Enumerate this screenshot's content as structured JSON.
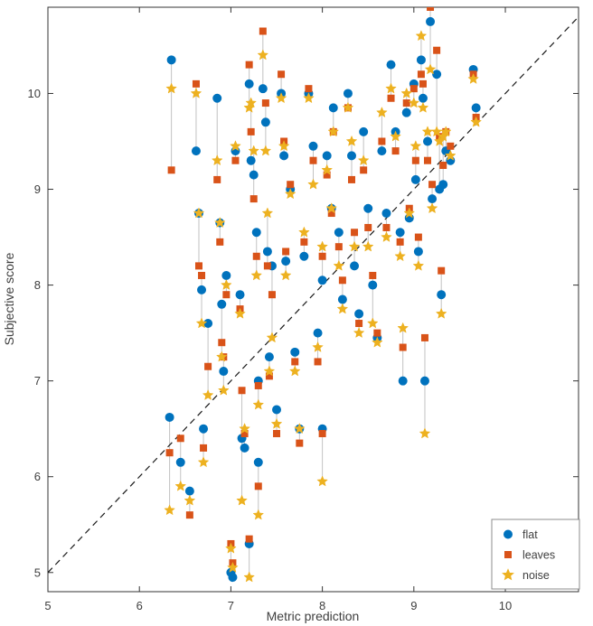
{
  "chart_data": {
    "type": "scatter",
    "title": "",
    "xlabel": "Metric prediction",
    "ylabel": "Subjective score",
    "xlim": [
      5,
      10.8
    ],
    "ylim": [
      4.8,
      10.9
    ],
    "xticks": [
      5,
      6,
      7,
      8,
      9,
      10
    ],
    "yticks": [
      5,
      6,
      7,
      8,
      9,
      10
    ],
    "grid": false,
    "identity_line": {
      "style": "dashed",
      "color": "#1a1a1a",
      "from": [
        5,
        5
      ],
      "to": [
        10.9,
        10.9
      ]
    },
    "connector_color": "#c2c2c2",
    "series": [
      {
        "name": "flat",
        "marker": "circle",
        "color": "#0072BD"
      },
      {
        "name": "leaves",
        "marker": "square",
        "color": "#D95319"
      },
      {
        "name": "noise",
        "marker": "star",
        "color": "#EDB120"
      }
    ],
    "legend": {
      "position": "bottom-right",
      "labels": [
        "flat",
        "leaves",
        "noise"
      ]
    },
    "groups_format": [
      "x",
      "flat_y",
      "leaves_y",
      "noise_y"
    ],
    "groups": [
      [
        6.35,
        10.35,
        9.2,
        10.05
      ],
      [
        6.33,
        6.62,
        6.25,
        5.65
      ],
      [
        6.45,
        6.15,
        6.4,
        5.9
      ],
      [
        6.55,
        5.85,
        5.6,
        5.75
      ],
      [
        6.62,
        9.4,
        10.1,
        10.0
      ],
      [
        6.65,
        8.75,
        8.2,
        8.75
      ],
      [
        6.68,
        7.95,
        8.1,
        7.6
      ],
      [
        6.7,
        6.5,
        6.3,
        6.15
      ],
      [
        6.75,
        7.6,
        7.15,
        6.85
      ],
      [
        6.85,
        9.95,
        9.1,
        9.3
      ],
      [
        6.88,
        8.65,
        8.45,
        8.65
      ],
      [
        6.9,
        7.8,
        7.4,
        7.25
      ],
      [
        6.92,
        7.1,
        7.25,
        6.9
      ],
      [
        6.95,
        8.1,
        7.9,
        8.0
      ],
      [
        7.0,
        5.0,
        5.3,
        5.25
      ],
      [
        7.02,
        4.95,
        5.1,
        5.05
      ],
      [
        7.05,
        9.4,
        9.3,
        9.45
      ],
      [
        7.1,
        7.9,
        7.75,
        7.7
      ],
      [
        7.12,
        6.4,
        6.9,
        5.75
      ],
      [
        7.15,
        6.3,
        6.45,
        6.5
      ],
      [
        7.2,
        5.3,
        5.35,
        4.95
      ],
      [
        7.2,
        10.1,
        10.3,
        9.85
      ],
      [
        7.22,
        9.3,
        9.6,
        9.9
      ],
      [
        7.25,
        9.15,
        8.9,
        9.4
      ],
      [
        7.28,
        8.55,
        8.3,
        8.1
      ],
      [
        7.3,
        7.0,
        6.95,
        6.75
      ],
      [
        7.3,
        6.15,
        5.9,
        5.6
      ],
      [
        7.35,
        10.05,
        10.65,
        10.4
      ],
      [
        7.38,
        9.7,
        9.9,
        9.4
      ],
      [
        7.4,
        8.35,
        8.2,
        8.75
      ],
      [
        7.42,
        7.25,
        7.05,
        7.1
      ],
      [
        7.45,
        8.2,
        7.9,
        7.45
      ],
      [
        7.5,
        6.7,
        6.45,
        6.55
      ],
      [
        7.55,
        10.0,
        10.2,
        9.95
      ],
      [
        7.58,
        9.35,
        9.5,
        9.45
      ],
      [
        7.6,
        8.25,
        8.35,
        8.1
      ],
      [
        7.65,
        9.0,
        9.05,
        8.95
      ],
      [
        7.7,
        7.3,
        7.2,
        7.1
      ],
      [
        7.75,
        6.5,
        6.35,
        6.5
      ],
      [
        7.8,
        8.3,
        8.45,
        8.55
      ],
      [
        7.85,
        10.0,
        10.05,
        9.95
      ],
      [
        7.9,
        9.45,
        9.3,
        9.05
      ],
      [
        7.95,
        7.5,
        7.2,
        7.35
      ],
      [
        8.0,
        8.05,
        8.3,
        8.4
      ],
      [
        8.0,
        6.5,
        6.45,
        5.95
      ],
      [
        8.05,
        9.35,
        9.15,
        9.2
      ],
      [
        8.1,
        8.8,
        8.75,
        8.8
      ],
      [
        8.12,
        9.85,
        9.6,
        9.6
      ],
      [
        8.18,
        8.55,
        8.4,
        8.2
      ],
      [
        8.22,
        7.85,
        8.05,
        7.75
      ],
      [
        8.28,
        10.0,
        9.85,
        9.85
      ],
      [
        8.32,
        9.35,
        9.1,
        9.5
      ],
      [
        8.35,
        8.2,
        8.55,
        8.4
      ],
      [
        8.4,
        7.7,
        7.6,
        7.5
      ],
      [
        8.45,
        9.6,
        9.2,
        9.3
      ],
      [
        8.5,
        8.8,
        8.6,
        8.4
      ],
      [
        8.55,
        8.0,
        8.1,
        7.6
      ],
      [
        8.6,
        7.45,
        7.5,
        7.4
      ],
      [
        8.65,
        9.4,
        9.5,
        9.8
      ],
      [
        8.7,
        8.75,
        8.6,
        8.5
      ],
      [
        8.75,
        10.3,
        9.95,
        10.05
      ],
      [
        8.8,
        9.6,
        9.4,
        9.55
      ],
      [
        8.85,
        8.55,
        8.45,
        8.3
      ],
      [
        8.88,
        7.0,
        7.35,
        7.55
      ],
      [
        8.92,
        9.8,
        9.9,
        10.0
      ],
      [
        8.95,
        8.7,
        8.8,
        8.75
      ],
      [
        9.0,
        10.1,
        10.05,
        9.9
      ],
      [
        9.02,
        9.1,
        9.3,
        9.45
      ],
      [
        9.05,
        8.35,
        8.5,
        8.2
      ],
      [
        9.08,
        10.35,
        10.2,
        10.6
      ],
      [
        9.1,
        9.95,
        10.1,
        9.85
      ],
      [
        9.12,
        7.0,
        7.45,
        6.45
      ],
      [
        9.15,
        9.5,
        9.3,
        9.6
      ],
      [
        9.18,
        10.75,
        10.9,
        10.25
      ],
      [
        9.2,
        8.9,
        9.05,
        8.8
      ],
      [
        9.25,
        10.2,
        10.45,
        9.6
      ],
      [
        9.28,
        9.0,
        9.55,
        9.5
      ],
      [
        9.3,
        7.9,
        8.15,
        7.7
      ],
      [
        9.32,
        9.05,
        9.25,
        9.55
      ],
      [
        9.35,
        9.4,
        9.6,
        9.6
      ],
      [
        9.4,
        9.3,
        9.45,
        9.35
      ],
      [
        9.65,
        10.25,
        10.2,
        10.15
      ],
      [
        9.68,
        9.85,
        9.75,
        9.7
      ]
    ]
  }
}
